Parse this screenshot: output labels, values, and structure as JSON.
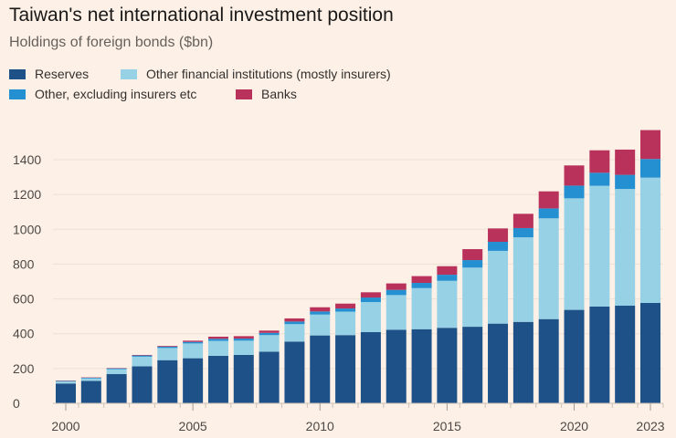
{
  "title": "Taiwan's net international investment position",
  "subtitle": "Holdings of foreign bonds ($bn)",
  "legend": [
    {
      "name": "Reserves",
      "color": "#1f5189"
    },
    {
      "name": "Other financial institutions (mostly insurers)",
      "color": "#96d1e6"
    },
    {
      "name": "Other, excluding insurers etc",
      "color": "#2490d1"
    },
    {
      "name": "Banks",
      "color": "#b8325c"
    }
  ],
  "chart_data": {
    "type": "bar",
    "stacked": true,
    "title": "Taiwan's net international investment position",
    "subtitle": "Holdings of foreign bonds ($bn)",
    "xlabel": "",
    "ylabel": "",
    "ylim": [
      0,
      1600
    ],
    "yticks": [
      0,
      200,
      400,
      600,
      800,
      1000,
      1200,
      1400
    ],
    "xticks": [
      "2000",
      "2005",
      "2010",
      "2015",
      "2020",
      "2023"
    ],
    "grid": true,
    "legend_position": "top-left",
    "categories": [
      2000,
      2001,
      2002,
      2003,
      2004,
      2005,
      2006,
      2007,
      2008,
      2009,
      2010,
      2011,
      2012,
      2013,
      2014,
      2015,
      2016,
      2017,
      2018,
      2019,
      2020,
      2021,
      2022,
      2023
    ],
    "series": [
      {
        "name": "Reserves",
        "color": "#1f5189",
        "values": [
          114,
          129,
          168,
          213,
          248,
          259,
          273,
          278,
          297,
          355,
          390,
          392,
          409,
          423,
          426,
          434,
          440,
          458,
          468,
          484,
          537,
          556,
          561,
          577
        ]
      },
      {
        "name": "Other financial institutions (mostly insurers)",
        "color": "#96d1e6",
        "values": [
          12,
          14,
          28,
          55,
          70,
          85,
          86,
          82,
          95,
          100,
          120,
          135,
          173,
          199,
          236,
          270,
          340,
          418,
          486,
          579,
          641,
          694,
          671,
          720
        ]
      },
      {
        "name": "Other, excluding insurers etc",
        "color": "#2490d1",
        "values": [
          3,
          4,
          5,
          7,
          8,
          9,
          12,
          12,
          13,
          15,
          18,
          18,
          26,
          30,
          30,
          35,
          43,
          52,
          53,
          57,
          73,
          75,
          81,
          107
        ]
      },
      {
        "name": "Banks",
        "color": "#b8325c",
        "values": [
          2,
          2,
          2,
          3,
          4,
          7,
          12,
          14,
          13,
          18,
          24,
          28,
          30,
          37,
          39,
          49,
          63,
          77,
          82,
          98,
          116,
          129,
          145,
          166
        ]
      }
    ]
  }
}
